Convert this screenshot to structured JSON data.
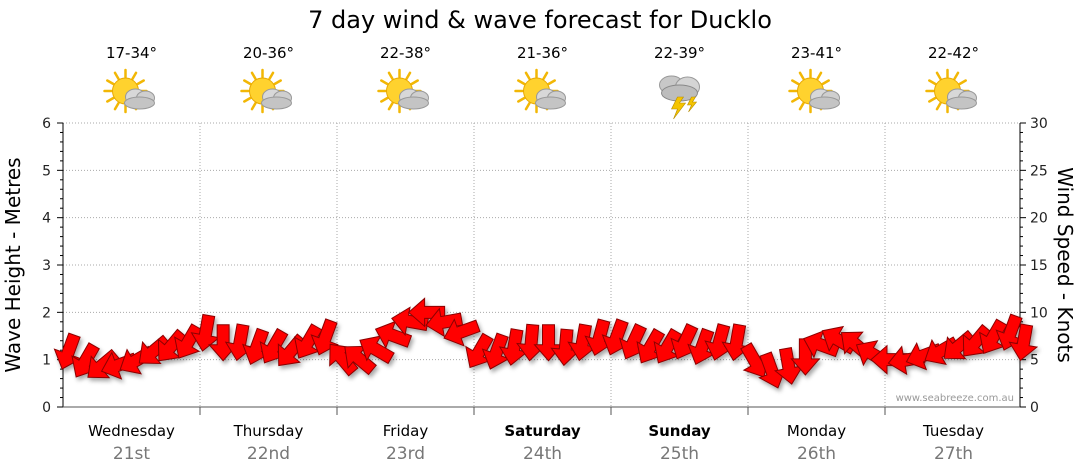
{
  "chart_data": {
    "type": "line",
    "title": "7 day wind & wave forecast for Ducklo",
    "ylabel_left": "Wave Height - Metres",
    "ylabel_right": "Wind Speed - Knots",
    "ylim_left": [
      0,
      6
    ],
    "ylim_right": [
      0,
      30
    ],
    "yticks_left": [
      "0",
      "1",
      "2",
      "3",
      "4",
      "5",
      "6"
    ],
    "yticks_right": [
      "0",
      "5",
      "10",
      "15",
      "20",
      "25",
      "30"
    ],
    "grid": true,
    "credit": "www.seabreeze.com.au",
    "days": [
      {
        "name": "Wednesday",
        "date": "21st",
        "temp": "17-34°",
        "icon": "partly-cloudy-sun-icon",
        "bold": false
      },
      {
        "name": "Thursday",
        "date": "22nd",
        "temp": "20-36°",
        "icon": "partly-cloudy-sun-icon",
        "bold": false
      },
      {
        "name": "Friday",
        "date": "23rd",
        "temp": "22-38°",
        "icon": "partly-cloudy-sun-icon",
        "bold": false
      },
      {
        "name": "Saturday",
        "date": "24th",
        "temp": "21-36°",
        "icon": "partly-cloudy-sun-icon",
        "bold": true
      },
      {
        "name": "Sunday",
        "date": "25th",
        "temp": "22-39°",
        "icon": "thunderstorm-icon",
        "bold": true
      },
      {
        "name": "Monday",
        "date": "26th",
        "temp": "23-41°",
        "icon": "partly-cloudy-sun-icon",
        "bold": false
      },
      {
        "name": "Tuesday",
        "date": "27th",
        "temp": "22-42°",
        "icon": "partly-cloudy-sun-icon",
        "bold": false
      }
    ],
    "series": [
      {
        "name": "wind",
        "color": "#ff0000",
        "x_day_fraction": [
          0.0,
          0.125,
          0.25,
          0.375,
          0.5,
          0.625,
          0.75,
          0.875,
          1.0,
          1.125,
          1.25,
          1.375,
          1.5,
          1.625,
          1.75,
          1.875,
          2.0,
          2.125,
          2.25,
          2.375,
          2.5,
          2.625,
          2.75,
          2.875,
          3.0,
          3.125,
          3.25,
          3.375,
          3.5,
          3.625,
          3.75,
          3.875,
          4.0,
          4.125,
          4.25,
          4.375,
          4.5,
          4.625,
          4.75,
          4.875,
          5.0,
          5.125,
          5.25,
          5.375,
          5.5,
          5.625,
          5.75,
          5.875,
          6.0,
          6.125,
          6.25,
          6.375,
          6.5,
          6.625,
          6.75,
          6.875,
          6.97
        ],
        "knots": [
          6,
          5,
          4.5,
          4.5,
          5,
          6,
          6.5,
          7,
          8,
          7,
          7,
          6.5,
          6.5,
          6,
          7,
          7.5,
          5,
          5,
          6,
          7.5,
          9,
          10,
          9,
          8,
          6,
          6,
          6.5,
          7,
          7,
          6.5,
          7,
          7.5,
          7.5,
          7,
          6.5,
          6.5,
          7,
          6.5,
          7,
          7,
          5,
          4,
          4.5,
          5.5,
          6.5,
          7,
          6.5,
          5.5,
          5,
          5,
          5.5,
          6,
          6.5,
          7,
          7.5,
          8,
          7
        ],
        "direction_deg": [
          110,
          120,
          140,
          160,
          150,
          140,
          130,
          120,
          100,
          90,
          100,
          110,
          120,
          130,
          120,
          110,
          230,
          220,
          210,
          200,
          190,
          180,
          170,
          160,
          120,
          110,
          100,
          95,
          90,
          95,
          100,
          105,
          110,
          115,
          120,
          120,
          115,
          110,
          105,
          100,
          60,
          70,
          80,
          90,
          200,
          210,
          220,
          210,
          180,
          170,
          160,
          150,
          140,
          130,
          120,
          110,
          100
        ]
      }
    ]
  }
}
